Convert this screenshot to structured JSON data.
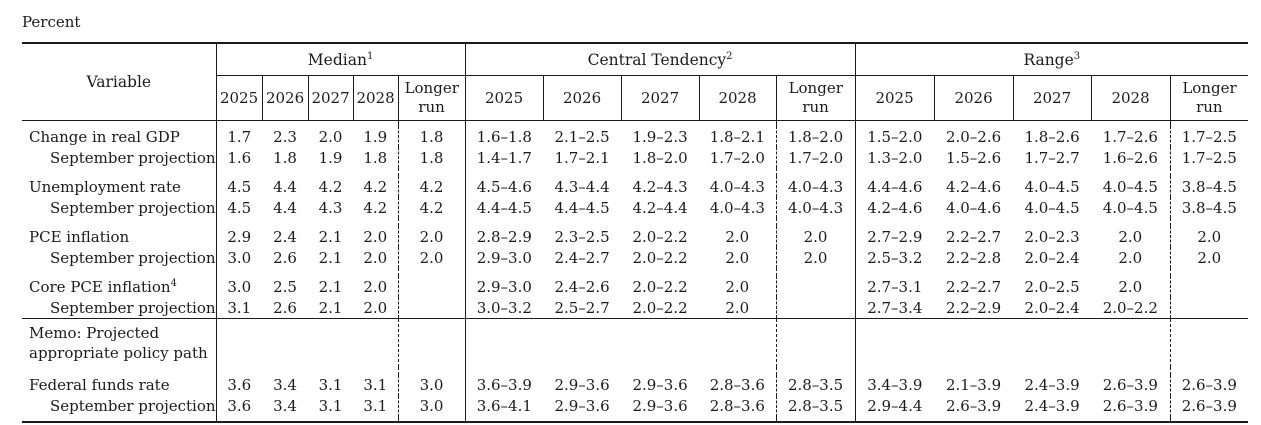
{
  "page_title": "Percent",
  "colors": {
    "ink": "#1b1b1b",
    "background": "#ffffff"
  },
  "table": {
    "variable_header": "Variable",
    "col_groups": [
      {
        "label": "Median",
        "footnote": "1"
      },
      {
        "label": "Central Tendency",
        "footnote": "2"
      },
      {
        "label": "Range",
        "footnote": "3"
      }
    ],
    "year_columns": [
      "2025",
      "2026",
      "2027",
      "2028"
    ],
    "longer_run_label": "Longer run",
    "rows": [
      {
        "type": "spacer",
        "h": 5
      },
      {
        "type": "data",
        "label": "Change in real GDP",
        "median": [
          "1.7",
          "2.3",
          "2.0",
          "1.9",
          "1.8"
        ],
        "central": [
          "1.6–1.8",
          "2.1–2.5",
          "1.9–2.3",
          "1.8–2.1",
          "1.8–2.0"
        ],
        "range": [
          "1.5–2.0",
          "2.0–2.6",
          "1.8–2.6",
          "1.7–2.6",
          "1.7–2.5"
        ]
      },
      {
        "type": "data",
        "label": "September projection",
        "indent": true,
        "median": [
          "1.6",
          "1.8",
          "1.9",
          "1.8",
          "1.8"
        ],
        "central": [
          "1.4–1.7",
          "1.7–2.1",
          "1.8–2.0",
          "1.7–2.0",
          "1.7–2.0"
        ],
        "range": [
          "1.3–2.0",
          "1.5–2.6",
          "1.7–2.7",
          "1.6–2.6",
          "1.7–2.5"
        ]
      },
      {
        "type": "spacer"
      },
      {
        "type": "data",
        "label": "Unemployment rate",
        "median": [
          "4.5",
          "4.4",
          "4.2",
          "4.2",
          "4.2"
        ],
        "central": [
          "4.5–4.6",
          "4.3–4.4",
          "4.2–4.3",
          "4.0–4.3",
          "4.0–4.3"
        ],
        "range": [
          "4.4–4.6",
          "4.2–4.6",
          "4.0–4.5",
          "4.0–4.5",
          "3.8–4.5"
        ]
      },
      {
        "type": "data",
        "label": "September projection",
        "indent": true,
        "median": [
          "4.5",
          "4.4",
          "4.3",
          "4.2",
          "4.2"
        ],
        "central": [
          "4.4–4.5",
          "4.4–4.5",
          "4.2–4.4",
          "4.0–4.3",
          "4.0–4.3"
        ],
        "range": [
          "4.2–4.6",
          "4.0–4.6",
          "4.0–4.5",
          "4.0–4.5",
          "3.8–4.5"
        ]
      },
      {
        "type": "spacer"
      },
      {
        "type": "data",
        "label": "PCE inflation",
        "median": [
          "2.9",
          "2.4",
          "2.1",
          "2.0",
          "2.0"
        ],
        "central": [
          "2.8–2.9",
          "2.3–2.5",
          "2.0–2.2",
          "2.0",
          "2.0"
        ],
        "range": [
          "2.7–2.9",
          "2.2–2.7",
          "2.0–2.3",
          "2.0",
          "2.0"
        ]
      },
      {
        "type": "data",
        "label": "September projection",
        "indent": true,
        "median": [
          "3.0",
          "2.6",
          "2.1",
          "2.0",
          "2.0"
        ],
        "central": [
          "2.9–3.0",
          "2.4–2.7",
          "2.0–2.2",
          "2.0",
          "2.0"
        ],
        "range": [
          "2.5–3.2",
          "2.2–2.8",
          "2.0–2.4",
          "2.0",
          "2.0"
        ]
      },
      {
        "type": "spacer"
      },
      {
        "type": "data",
        "label": "Core PCE inflation",
        "sup": "4",
        "median": [
          "3.0",
          "2.5",
          "2.1",
          "2.0",
          ""
        ],
        "central": [
          "2.9–3.0",
          "2.4–2.6",
          "2.0–2.2",
          "2.0",
          ""
        ],
        "range": [
          "2.7–3.1",
          "2.2–2.7",
          "2.0–2.5",
          "2.0",
          ""
        ]
      },
      {
        "type": "data",
        "label": "September projection",
        "indent": true,
        "median": [
          "3.1",
          "2.6",
          "2.1",
          "2.0",
          ""
        ],
        "central": [
          "3.0–3.2",
          "2.5–2.7",
          "2.0–2.2",
          "2.0",
          ""
        ],
        "range": [
          "2.7–3.4",
          "2.2–2.9",
          "2.0–2.4",
          "2.0–2.2",
          ""
        ]
      },
      {
        "type": "memo",
        "label": "Memo: Projected",
        "label2": "appropriate policy path"
      },
      {
        "type": "spacer"
      },
      {
        "type": "data",
        "label": "Federal funds rate",
        "median": [
          "3.6",
          "3.4",
          "3.1",
          "3.1",
          "3.0"
        ],
        "central": [
          "3.6–3.9",
          "2.9–3.6",
          "2.9–3.6",
          "2.8–3.6",
          "2.8–3.5"
        ],
        "range": [
          "3.4–3.9",
          "2.1–3.9",
          "2.4–3.9",
          "2.6–3.9",
          "2.6–3.9"
        ]
      },
      {
        "type": "data",
        "label": "September projection",
        "indent": true,
        "median": [
          "3.6",
          "3.4",
          "3.1",
          "3.1",
          "3.0"
        ],
        "central": [
          "3.6–4.1",
          "2.9–3.6",
          "2.9–3.6",
          "2.8–3.6",
          "2.8–3.5"
        ],
        "range": [
          "2.9–4.4",
          "2.6–3.9",
          "2.4–3.9",
          "2.6–3.9",
          "2.6–3.9"
        ]
      },
      {
        "type": "spacer",
        "h": 4
      }
    ]
  }
}
